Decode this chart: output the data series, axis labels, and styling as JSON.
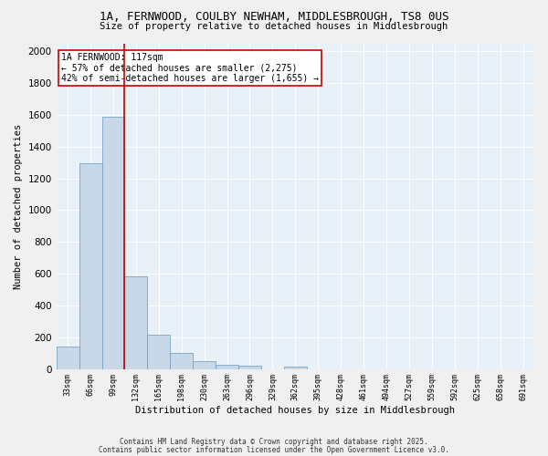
{
  "title1": "1A, FERNWOOD, COULBY NEWHAM, MIDDLESBROUGH, TS8 0US",
  "title2": "Size of property relative to detached houses in Middlesbrough",
  "xlabel": "Distribution of detached houses by size in Middlesbrough",
  "ylabel": "Number of detached properties",
  "bar_color": "#c8d8e8",
  "bar_edge_color": "#6699bb",
  "bins": [
    "33sqm",
    "66sqm",
    "99sqm",
    "132sqm",
    "165sqm",
    "198sqm",
    "230sqm",
    "263sqm",
    "296sqm",
    "329sqm",
    "362sqm",
    "395sqm",
    "428sqm",
    "461sqm",
    "494sqm",
    "527sqm",
    "559sqm",
    "592sqm",
    "625sqm",
    "658sqm",
    "691sqm"
  ],
  "counts": [
    140,
    1295,
    1590,
    585,
    215,
    100,
    50,
    25,
    20,
    0,
    15,
    0,
    0,
    0,
    0,
    0,
    0,
    0,
    0,
    0,
    0
  ],
  "vline_x": 2.5,
  "vline_color": "#cc0000",
  "annotation_text": "1A FERNWOOD: 117sqm\n← 57% of detached houses are smaller (2,275)\n42% of semi-detached houses are larger (1,655) →",
  "annotation_box_color": "#ffffff",
  "annotation_box_edge": "#cc0000",
  "ylim": [
    0,
    2050
  ],
  "yticks": [
    0,
    200,
    400,
    600,
    800,
    1000,
    1200,
    1400,
    1600,
    1800,
    2000
  ],
  "bg_color": "#e8f0f8",
  "grid_color": "#ffffff",
  "fig_bg_color": "#f0f0f0",
  "footer1": "Contains HM Land Registry data © Crown copyright and database right 2025.",
  "footer2": "Contains public sector information licensed under the Open Government Licence v3.0."
}
